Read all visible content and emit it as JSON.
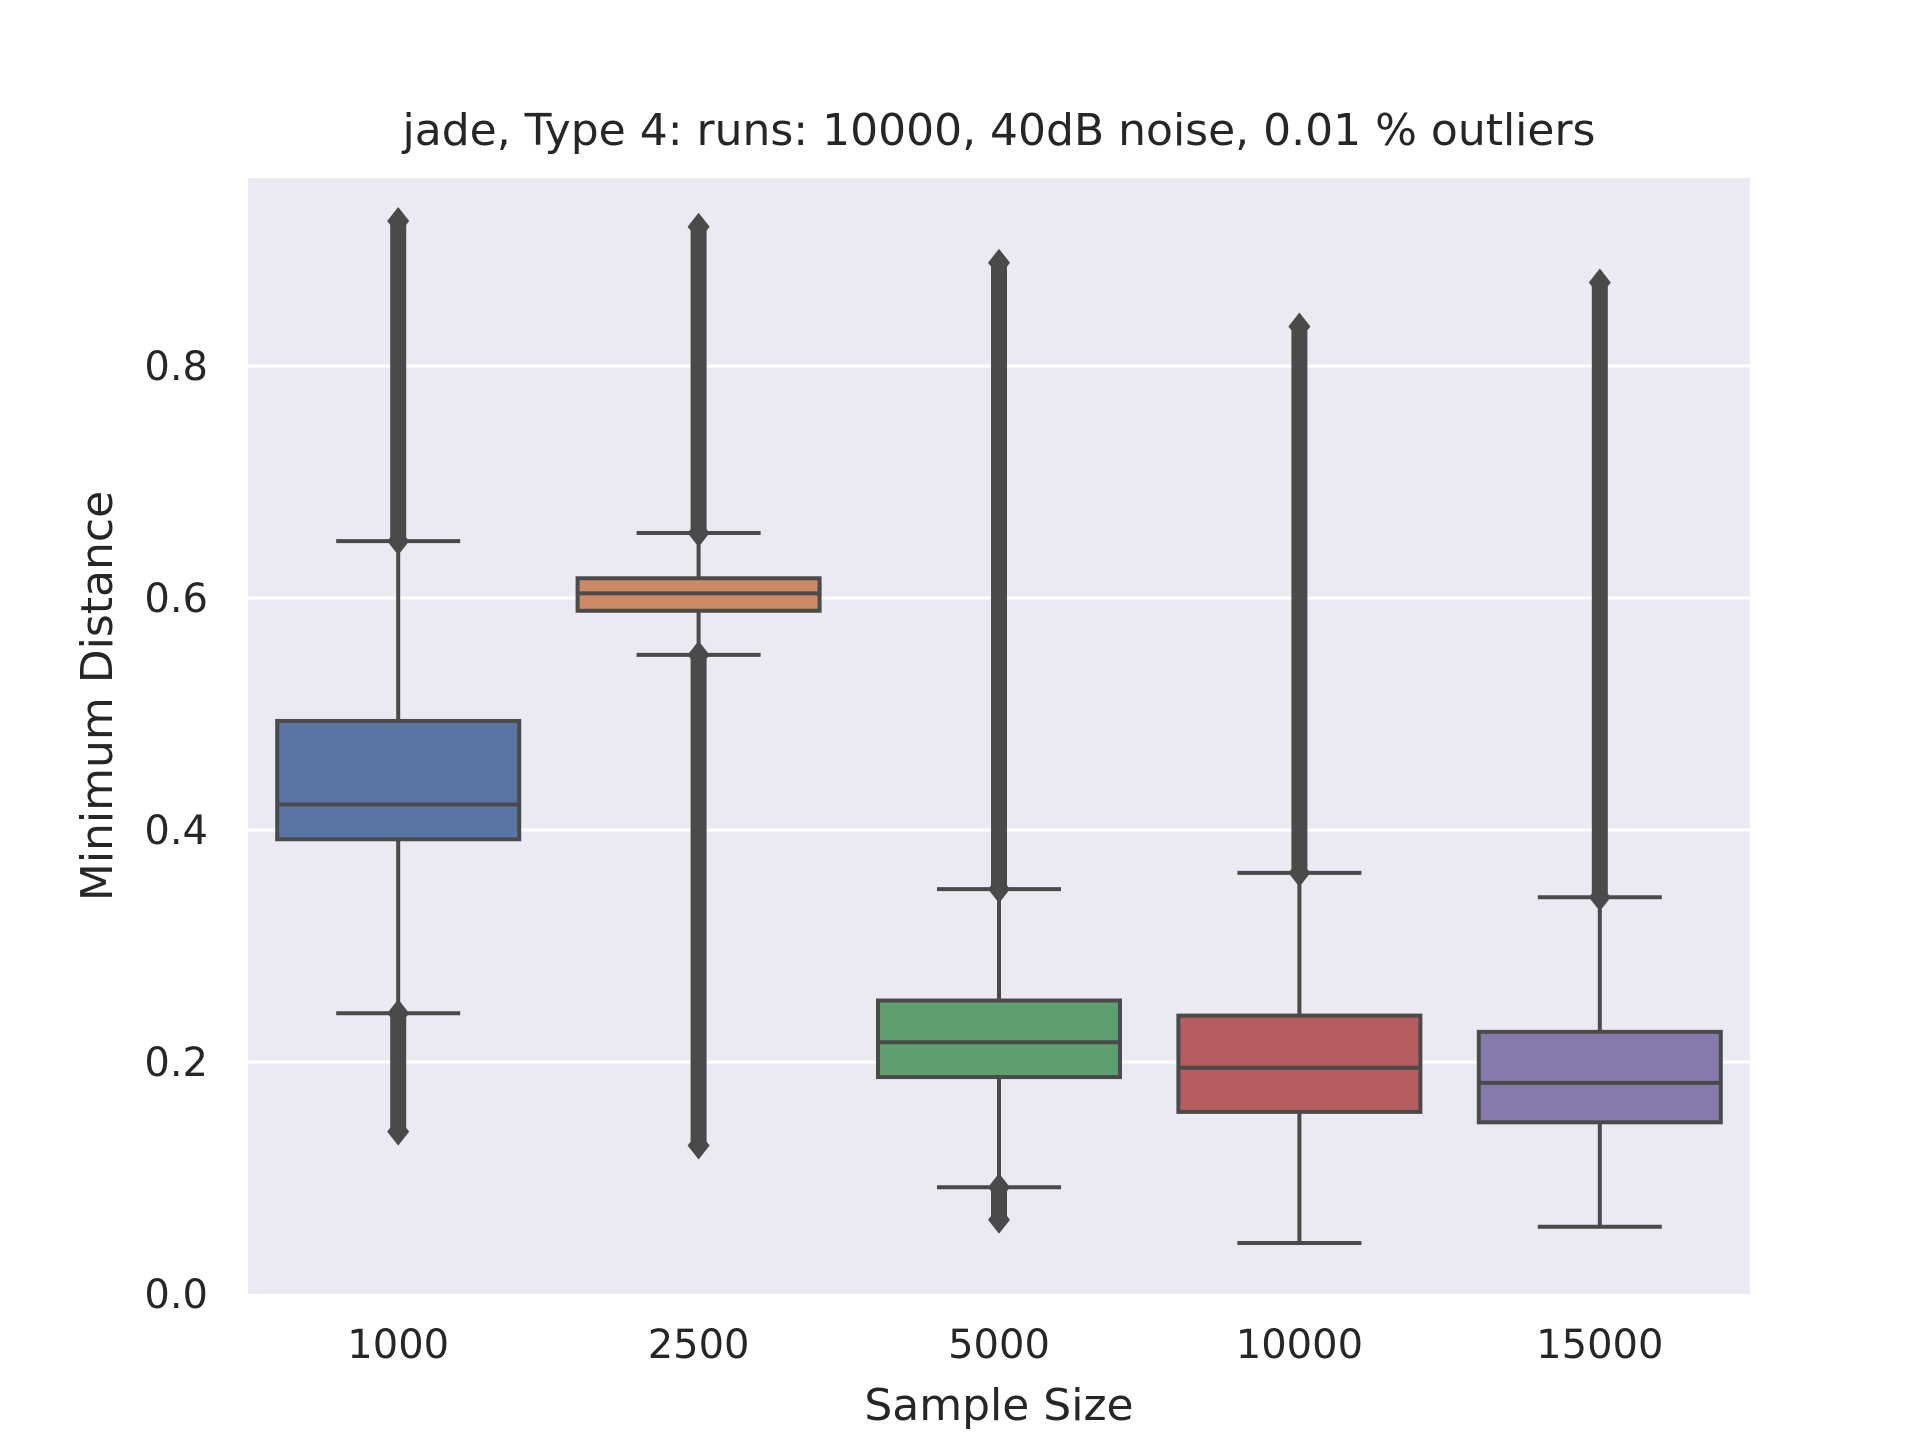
{
  "chart_data": {
    "type": "box",
    "title": "jade,  Type 4:  runs: 10000, 40dB noise, 0.01 % outliers",
    "xlabel": "Sample Size",
    "ylabel": "Minimum Distance",
    "ylim": [
      0.0,
      0.96
    ],
    "yticks": [
      "0.0",
      "0.2",
      "0.4",
      "0.6",
      "0.8"
    ],
    "yticks_values": [
      0.0,
      0.2,
      0.4,
      0.6,
      0.8
    ],
    "grid": true,
    "background": "#EAEAF2",
    "categories": [
      "1000",
      "2500",
      "5000",
      "10000",
      "15000"
    ],
    "boxes": [
      {
        "category": "1000",
        "color": "#5875A4",
        "whisker_low": 0.242,
        "q1": 0.392,
        "median": 0.422,
        "q3": 0.494,
        "whisker_high": 0.649,
        "outliers_low": [
          0.242,
          0.14
        ],
        "outliers_high": [
          0.649,
          0.925
        ]
      },
      {
        "category": "2500",
        "color": "#CC8963",
        "whisker_low": 0.551,
        "q1": 0.589,
        "median": 0.604,
        "q3": 0.617,
        "whisker_high": 0.656,
        "outliers_low": [
          0.551,
          0.128
        ],
        "outliers_high": [
          0.656,
          0.92
        ]
      },
      {
        "category": "5000",
        "color": "#5F9E6E",
        "whisker_low": 0.092,
        "q1": 0.187,
        "median": 0.217,
        "q3": 0.253,
        "whisker_high": 0.349,
        "outliers_low": [
          0.092,
          0.064
        ],
        "outliers_high": [
          0.349,
          0.889
        ]
      },
      {
        "category": "10000",
        "color": "#B55D60",
        "whisker_low": 0.044,
        "q1": 0.157,
        "median": 0.195,
        "q3": 0.24,
        "whisker_high": 0.363,
        "outliers_low": [],
        "outliers_high": [
          0.363,
          0.834
        ]
      },
      {
        "category": "15000",
        "color": "#857AAB",
        "whisker_low": 0.058,
        "q1": 0.148,
        "median": 0.182,
        "q3": 0.226,
        "whisker_high": 0.342,
        "outliers_low": [],
        "outliers_high": [
          0.342,
          0.872
        ]
      }
    ]
  }
}
